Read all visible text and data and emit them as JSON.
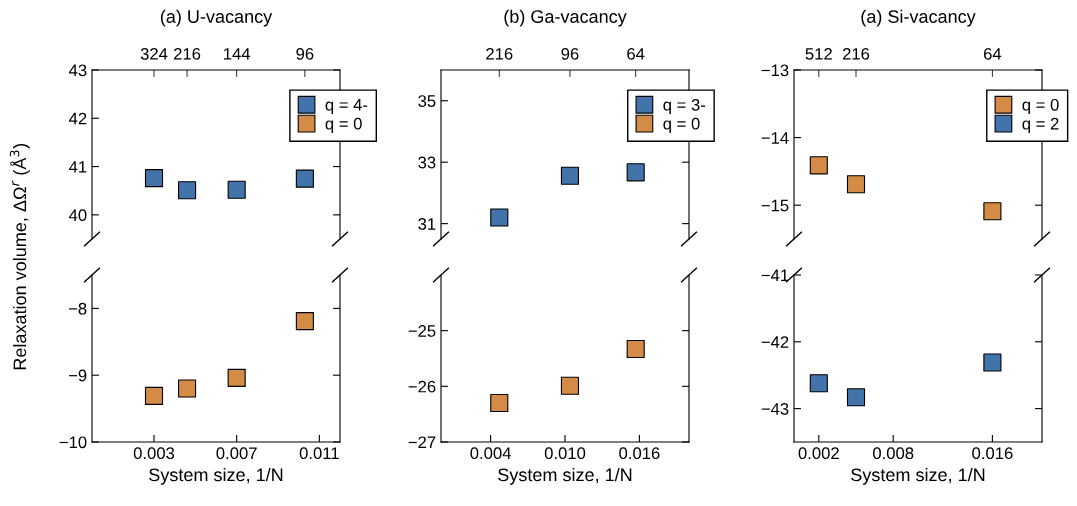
{
  "chart_data": [
    {
      "type": "scatter",
      "title": "(a) U-vacancy",
      "ylabel": "Relaxation volume, ΔΩ$^{r}$ (Å$^{3}$)",
      "x": [
        0.003,
        0.0046,
        0.007,
        0.0103
      ],
      "xlim": [
        0,
        0.012
      ],
      "annotations": [
        "324",
        "216",
        "144",
        "96"
      ],
      "ylim": [
        39.5,
        43
      ],
      "yticks": [
        40,
        41,
        42,
        43
      ],
      "tick_labels": "y",
      "marker": "square",
      "legend": "top right",
      "grid": false,
      "series": [
        {
          "name": "q = 4-",
          "color": "#4274ab",
          "values": [
            40.76,
            40.51,
            40.52,
            40.75
          ]
        },
        {
          "name": "q = 0",
          "color": "#d38b45",
          "values": [
            null,
            null,
            null,
            null
          ]
        }
      ]
    },
    {
      "type": "scatter",
      "title": "(b) Ga-vacancy",
      "x": [
        0.0047,
        0.0104,
        0.0157
      ],
      "xlim": [
        0,
        0.02
      ],
      "annotations": [
        "216",
        "96",
        "64"
      ],
      "ylim": [
        30.5,
        36
      ],
      "yticks": [
        31,
        33,
        35
      ],
      "tick_labels": "y",
      "marker": "square",
      "legend": "top right",
      "grid": false,
      "series": [
        {
          "name": "q = 3-",
          "color": "#4274ab",
          "values": [
            31.2,
            32.56,
            32.67
          ]
        },
        {
          "name": "q = 0",
          "color": "#d38b45",
          "values": [
            null,
            null,
            null
          ]
        }
      ]
    },
    {
      "type": "scatter",
      "title": "(a) Si-vacancy",
      "x": [
        0.002,
        0.005,
        0.016
      ],
      "xlim": [
        0,
        0.02
      ],
      "annotations": [
        "512",
        "216",
        "64"
      ],
      "ylim": [
        -15.5,
        -13
      ],
      "yticks": [
        {
          "value": -15,
          "label": "−15"
        },
        {
          "value": -14,
          "label": "−14"
        },
        {
          "value": -13,
          "label": "−13"
        }
      ],
      "tick_labels": "y",
      "marker": "square",
      "legend": "top right",
      "grid": false,
      "series": [
        {
          "name": "q = 0",
          "color": "#d38b45",
          "values": [
            -14.41,
            -14.69,
            -15.09
          ]
        },
        {
          "name": "q = 2",
          "color": "#4274ab",
          "values": [
            null,
            null,
            null
          ]
        }
      ]
    },
    {
      "type": "scatter",
      "xlabel": "System size, 1/N",
      "x": [
        0.003,
        0.0046,
        0.007,
        0.0103
      ],
      "xlim": [
        0,
        0.012
      ],
      "xticks": [
        0.003,
        0.007,
        0.011
      ],
      "ylim": [
        -10,
        -7.5
      ],
      "yticks": [
        {
          "value": -10,
          "label": "−10"
        },
        {
          "value": -9,
          "label": "−9"
        },
        {
          "value": -8,
          "label": "−8"
        }
      ],
      "marker": "square",
      "grid": false,
      "series": [
        {
          "color": "#d38b45",
          "values": [
            -9.31,
            -9.2,
            -9.04,
            -8.19
          ]
        }
      ]
    },
    {
      "type": "scatter",
      "xlabel": "System size, 1/N",
      "x": [
        0.0047,
        0.0104,
        0.0157
      ],
      "xlim": [
        0,
        0.02
      ],
      "xticks": [
        0.004,
        {
          "value": 0.01,
          "label": "0.010"
        },
        0.016
      ],
      "ylim": [
        -27,
        -24
      ],
      "yticks": [
        {
          "value": -27,
          "label": "−27"
        },
        {
          "value": -26,
          "label": "−26"
        },
        {
          "value": -25,
          "label": "−25"
        }
      ],
      "marker": "square",
      "grid": false,
      "series": [
        {
          "color": "#d38b45",
          "values": [
            -26.3,
            -25.99,
            -25.33
          ]
        }
      ]
    },
    {
      "type": "scatter",
      "xlabel": "System size, 1/N",
      "x": [
        0.002,
        0.005,
        0.016
      ],
      "xlim": [
        0,
        0.02
      ],
      "xticks": [
        0.002,
        0.008,
        0.016
      ],
      "ylim": [
        -43.5,
        -41
      ],
      "yticks": [
        {
          "value": -43,
          "label": "−43"
        },
        {
          "value": -42,
          "label": "−42"
        },
        {
          "value": -41,
          "label": "−41"
        }
      ],
      "marker": "square",
      "grid": false,
      "series": [
        {
          "color": "#4274ab",
          "values": [
            -42.62,
            -42.83,
            -42.31
          ]
        }
      ]
    }
  ]
}
